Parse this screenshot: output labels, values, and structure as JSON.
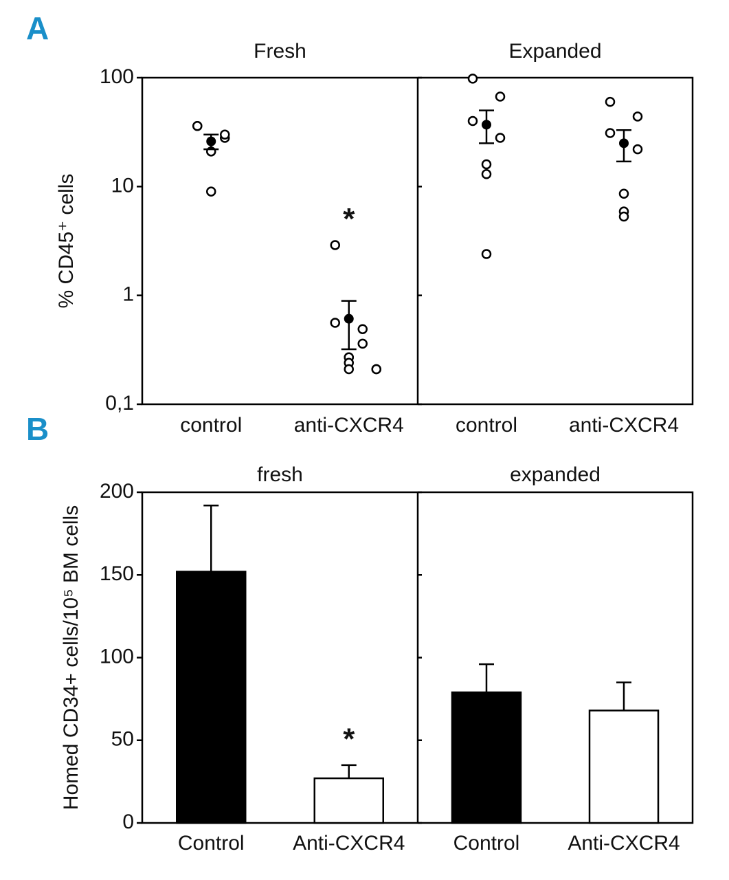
{
  "chart_data": [
    {
      "type": "scatter",
      "label": "A",
      "ylabel": "% CD45⁺ cells",
      "log": true,
      "ylim": [
        0.1,
        100
      ],
      "yticks": [
        {
          "value": 0.1,
          "label": "0,1"
        },
        1,
        10,
        100
      ],
      "panels": [
        {
          "title": "Fresh",
          "categories": [
            "control",
            "anti-CXCR4"
          ],
          "points": [
            [
              36,
              28,
              36,
              30,
              21,
              9
            ],
            [
              2.9,
              0.49,
              0.56,
              0.36,
              0.27,
              0.27,
              0.24,
              0.21,
              0.21,
              0.21
            ]
          ],
          "mean": [
            26,
            0.61
          ],
          "err_low": [
            22,
            0.32
          ],
          "err_high": [
            30,
            0.89
          ],
          "annotation": {
            "category": 1,
            "text": "*"
          }
        },
        {
          "title": "Expanded",
          "categories": [
            "control",
            "anti-CXCR4"
          ],
          "points": [
            [
              98,
              67,
              40,
              28,
              16,
              13,
              2.4
            ],
            [
              60,
              44,
              31,
              22,
              8.6,
              5.9,
              5.3
            ]
          ],
          "mean": [
            37,
            25
          ],
          "err_low": [
            25,
            17
          ],
          "err_high": [
            50,
            33
          ]
        }
      ]
    },
    {
      "type": "bar",
      "label": "B",
      "ylabel": "Homed CD34+ cells/10⁵ BM cells",
      "ylim": [
        0,
        200
      ],
      "yticks": [
        0,
        50,
        100,
        150,
        200
      ],
      "colors": [
        "#000000",
        "#ffffff"
      ],
      "panels": [
        {
          "title": "fresh",
          "categories": [
            "Control",
            "Anti-CXCR4"
          ],
          "values": [
            152,
            27
          ],
          "errors": [
            40,
            8
          ],
          "annotation": {
            "category": 1,
            "text": "*"
          }
        },
        {
          "title": "expanded",
          "categories": [
            "Control",
            "Anti-CXCR4"
          ],
          "values": [
            79,
            68
          ],
          "errors": [
            17,
            17
          ]
        }
      ]
    }
  ]
}
